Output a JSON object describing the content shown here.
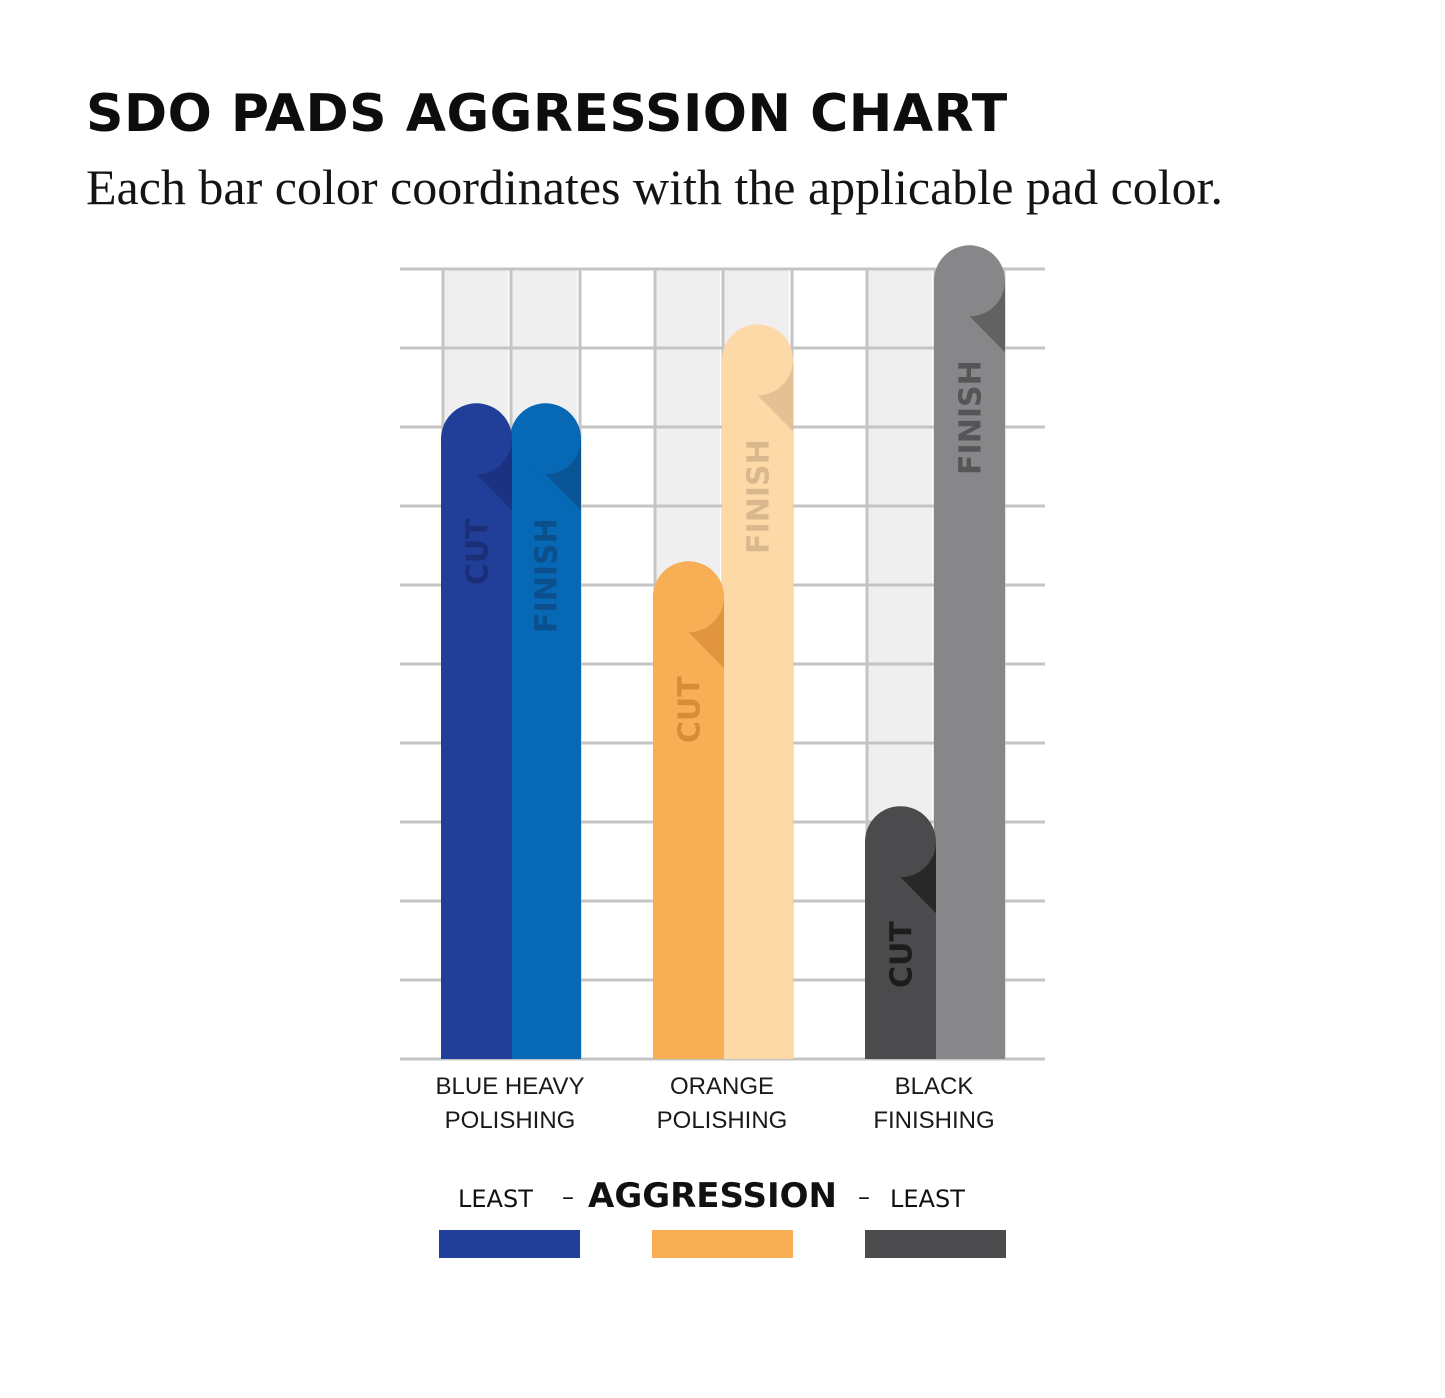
{
  "chart_data": {
    "type": "bar",
    "title": "SDO PADS AGGRESSION CHART",
    "subtitle": "Each bar color coordinates with the applicable pad color.",
    "categories": [
      [
        "BLUE HEAVY",
        "POLISHING"
      ],
      [
        "ORANGE",
        "POLISHING"
      ],
      [
        "BLACK",
        "FINISHING"
      ]
    ],
    "series": [
      {
        "name": "CUT",
        "values": [
          8.3,
          6.3,
          3.2
        ],
        "colors": [
          "#213f99",
          "#f7ae55",
          "#4b4b4d"
        ],
        "label_colors": [
          "#1a2f78",
          "#d98c38",
          "#1c1c1c"
        ]
      },
      {
        "name": "FINISH",
        "values": [
          8.3,
          9.3,
          10.3
        ],
        "colors": [
          "#0768b5",
          "#fdd9a8",
          "#878789"
        ],
        "label_colors": [
          "#0b4f8c",
          "#d9b88d",
          "#555557"
        ]
      }
    ],
    "ylim": [
      0,
      10
    ],
    "grid": true,
    "legend": {
      "left": "LEAST",
      "center": "AGGRESSION",
      "right": "LEAST",
      "swatches": [
        "#213f99",
        "#f7ae55",
        "#4b4b4d"
      ]
    }
  }
}
